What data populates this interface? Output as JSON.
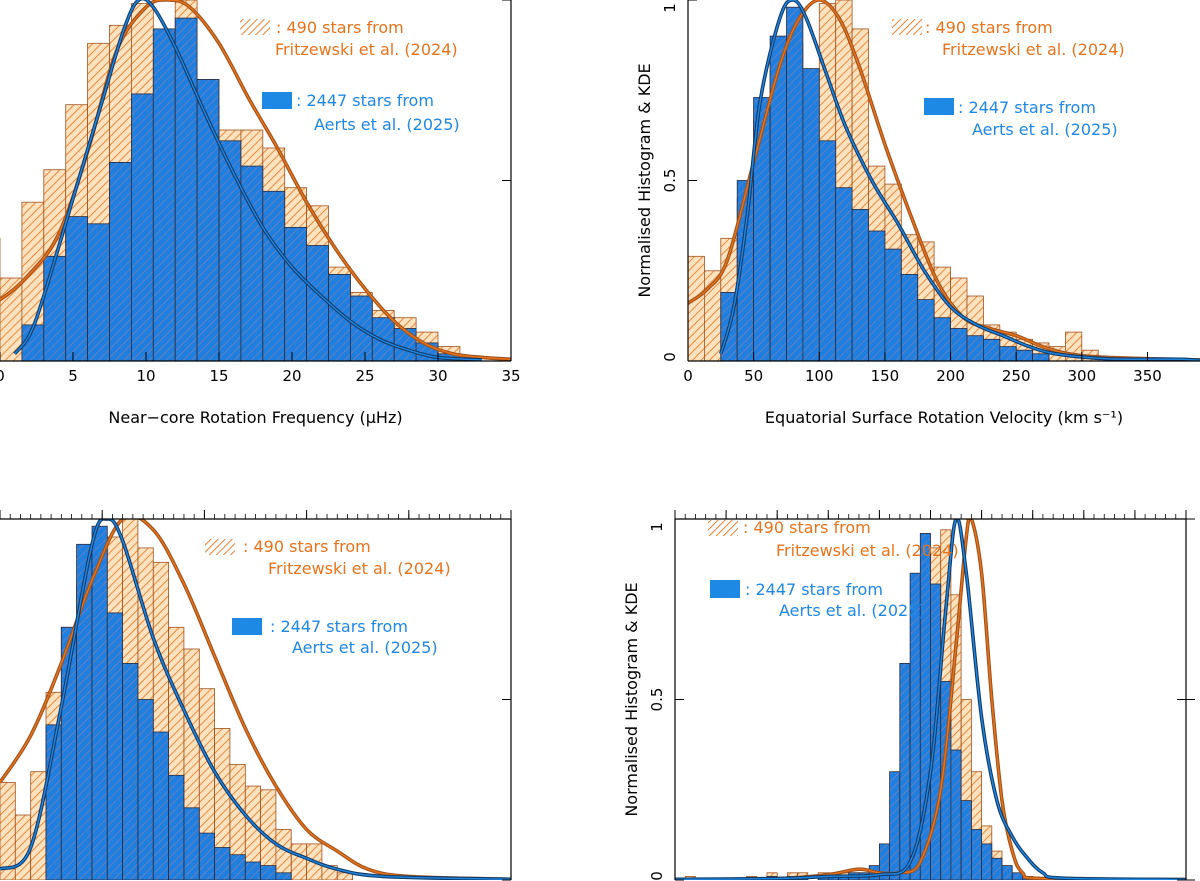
{
  "colors": {
    "orange": "#e8731a",
    "orange_fill": "#fde2c0",
    "orange_hatch": "#e8731a",
    "orange_kde": "#a0521c",
    "blue": "#1e88e5",
    "blue_fill": "#1f7fe0",
    "blue_hatch": "#6a5a78",
    "blue_kde": "#123a66",
    "ink": "#000000"
  },
  "legend": {
    "orange_count": ": 490 stars from",
    "orange_ref": "Fritzewski et al. (2024)",
    "blue_count": ": 2447 stars from",
    "blue_ref": "Aerts et al. (2025)"
  },
  "chart_data": [
    {
      "id": "panel-a",
      "type": "bar",
      "xlabel": "Near−core Rotation Frequency (μHz)",
      "ylabel": "",
      "xlim": [
        0,
        35
      ],
      "ylim": [
        0,
        1
      ],
      "xticks": [
        0,
        5,
        10,
        15,
        20,
        25,
        30,
        35
      ],
      "xticklabels": [
        "0",
        "5",
        "10",
        "15",
        "20",
        "25",
        "30",
        "35"
      ],
      "yticks": [
        0,
        0.5,
        1
      ],
      "yticklabels": [],
      "bin_width": 1.5,
      "series": [
        {
          "name": "490 stars from Fritzewski et al. (2024)",
          "bin_start": -1.5,
          "values": [
            0.34,
            0.23,
            0.44,
            0.53,
            0.71,
            0.88,
            0.93,
            0.99,
            0.85,
            1.0,
            0.71,
            0.64,
            0.64,
            0.59,
            0.48,
            0.43,
            0.26,
            0.19,
            0.14,
            0.12,
            0.08,
            0.04
          ],
          "kde": [
            [
              -1.5,
              0.15
            ],
            [
              0,
              0.17
            ],
            [
              2,
              0.24
            ],
            [
              4,
              0.35
            ],
            [
              6,
              0.58
            ],
            [
              8,
              0.86
            ],
            [
              10,
              0.98
            ],
            [
              11.5,
              1.0
            ],
            [
              13,
              0.98
            ],
            [
              15,
              0.88
            ],
            [
              17,
              0.73
            ],
            [
              19,
              0.59
            ],
            [
              21,
              0.44
            ],
            [
              23,
              0.31
            ],
            [
              25,
              0.2
            ],
            [
              27,
              0.11
            ],
            [
              29,
              0.05
            ],
            [
              31,
              0.02
            ],
            [
              33,
              0.01
            ],
            [
              35,
              0.005
            ]
          ]
        },
        {
          "name": "2447 stars from Aerts et al. (2025)",
          "bin_start": -1.5,
          "values": [
            0,
            0,
            0.1,
            0.29,
            0.4,
            0.38,
            0.55,
            0.74,
            0.92,
            0.95,
            0.78,
            0.61,
            0.54,
            0.47,
            0.37,
            0.32,
            0.24,
            0.18,
            0.12,
            0.09,
            0.05,
            0.02
          ],
          "kde": [
            [
              1,
              0.02
            ],
            [
              2,
              0.07
            ],
            [
              3,
              0.18
            ],
            [
              5,
              0.45
            ],
            [
              7,
              0.72
            ],
            [
              8.5,
              0.92
            ],
            [
              9.5,
              1.0
            ],
            [
              10.5,
              0.98
            ],
            [
              12,
              0.87
            ],
            [
              14,
              0.69
            ],
            [
              16,
              0.52
            ],
            [
              18,
              0.37
            ],
            [
              20,
              0.26
            ],
            [
              22,
              0.18
            ],
            [
              24,
              0.11
            ],
            [
              26,
              0.06
            ],
            [
              28,
              0.03
            ],
            [
              30,
              0.01
            ],
            [
              33,
              0.003
            ]
          ]
        }
      ]
    },
    {
      "id": "panel-b",
      "type": "bar",
      "xlabel": "Equatorial Surface Rotation Velocity (km s⁻¹)",
      "ylabel": "Normalised Histogram & KDE",
      "xlim": [
        0,
        390
      ],
      "ylim": [
        0,
        1
      ],
      "xticks": [
        0,
        50,
        100,
        150,
        200,
        250,
        300,
        350
      ],
      "xticklabels": [
        "0",
        "50",
        "100",
        "150",
        "200",
        "250",
        "300",
        "350"
      ],
      "yticks": [
        0,
        0.5,
        1
      ],
      "yticklabels": [
        "0",
        "0.5",
        "1"
      ],
      "bin_width": 12.5,
      "series": [
        {
          "name": "490 stars from Fritzewski et al. (2024)",
          "bin_start": 0,
          "values": [
            0.29,
            0.25,
            0.34,
            0.45,
            0.67,
            0.84,
            0.88,
            0.79,
            0.99,
            1.0,
            0.92,
            0.54,
            0.49,
            0.35,
            0.33,
            0.26,
            0.23,
            0.18,
            0.1,
            0.08,
            0.06,
            0.05,
            0.04,
            0.08,
            0.03
          ],
          "kde": [
            [
              0,
              0.16
            ],
            [
              15,
              0.2
            ],
            [
              30,
              0.28
            ],
            [
              50,
              0.55
            ],
            [
              70,
              0.82
            ],
            [
              85,
              0.95
            ],
            [
              100,
              1.0
            ],
            [
              115,
              0.95
            ],
            [
              130,
              0.82
            ],
            [
              150,
              0.6
            ],
            [
              170,
              0.4
            ],
            [
              190,
              0.22
            ],
            [
              210,
              0.12
            ],
            [
              230,
              0.09
            ],
            [
              250,
              0.07
            ],
            [
              270,
              0.04
            ],
            [
              290,
              0.02
            ],
            [
              320,
              0.01
            ],
            [
              390,
              0.003
            ]
          ]
        },
        {
          "name": "2447 stars from Aerts et al. (2025)",
          "bin_start": 25,
          "values": [
            0.19,
            0.5,
            0.73,
            0.9,
            0.98,
            0.81,
            0.61,
            0.48,
            0.42,
            0.36,
            0.31,
            0.24,
            0.17,
            0.12,
            0.09,
            0.07,
            0.06,
            0.04,
            0.03,
            0.02
          ],
          "kde": [
            [
              25,
              0.02
            ],
            [
              35,
              0.15
            ],
            [
              45,
              0.4
            ],
            [
              55,
              0.72
            ],
            [
              70,
              0.95
            ],
            [
              80,
              1.0
            ],
            [
              90,
              0.95
            ],
            [
              105,
              0.8
            ],
            [
              120,
              0.65
            ],
            [
              140,
              0.5
            ],
            [
              160,
              0.38
            ],
            [
              180,
              0.25
            ],
            [
              200,
              0.15
            ],
            [
              220,
              0.1
            ],
            [
              240,
              0.07
            ],
            [
              260,
              0.04
            ],
            [
              280,
              0.02
            ],
            [
              320,
              0.006
            ],
            [
              370,
              0.005
            ],
            [
              390,
              0.002
            ]
          ]
        }
      ]
    },
    {
      "id": "panel-c",
      "type": "bar",
      "xlabel": "",
      "ylabel": "",
      "xlim": [
        0,
        10
      ],
      "ylim": [
        0,
        1
      ],
      "xticks": [
        0,
        2,
        4,
        6,
        8,
        10
      ],
      "xticklabels": [],
      "yticks": [
        0,
        0.5,
        1
      ],
      "yticklabels": [],
      "bin_width": 0.3,
      "series": [
        {
          "name": "490 stars from Fritzewski et al. (2024)",
          "bin_start": 0,
          "values": [
            0.27,
            0.18,
            0.3,
            0.52,
            0.7,
            0.82,
            0.87,
            0.95,
            1.0,
            0.92,
            0.88,
            0.7,
            0.64,
            0.53,
            0.42,
            0.32,
            0.26,
            0.25,
            0.14,
            0.1,
            0.1,
            0.04,
            0.02
          ],
          "kde": [
            [
              0,
              0.27
            ],
            [
              0.6,
              0.4
            ],
            [
              1.2,
              0.6
            ],
            [
              1.8,
              0.83
            ],
            [
              2.4,
              1.0
            ],
            [
              3.0,
              0.97
            ],
            [
              3.6,
              0.82
            ],
            [
              4.2,
              0.62
            ],
            [
              4.8,
              0.42
            ],
            [
              5.4,
              0.26
            ],
            [
              6.0,
              0.14
            ],
            [
              6.6,
              0.08
            ],
            [
              7.2,
              0.03
            ],
            [
              8,
              0.01
            ],
            [
              10,
              0.002
            ]
          ]
        },
        {
          "name": "2447 stars from Aerts et al. (2025)",
          "bin_start": 0.9,
          "values": [
            0.43,
            0.7,
            0.93,
            0.98,
            0.74,
            0.6,
            0.5,
            0.41,
            0.29,
            0.2,
            0.13,
            0.09,
            0.07,
            0.05,
            0.04,
            0.02
          ],
          "kde": [
            [
              0,
              0.03
            ],
            [
              0.6,
              0.09
            ],
            [
              1.2,
              0.48
            ],
            [
              1.8,
              0.93
            ],
            [
              2.1,
              1.0
            ],
            [
              2.4,
              0.94
            ],
            [
              3.0,
              0.67
            ],
            [
              3.6,
              0.47
            ],
            [
              4.2,
              0.3
            ],
            [
              4.8,
              0.18
            ],
            [
              5.4,
              0.1
            ],
            [
              6.0,
              0.06
            ],
            [
              6.6,
              0.03
            ],
            [
              7.5,
              0.01
            ],
            [
              10,
              0.002
            ]
          ]
        }
      ]
    },
    {
      "id": "panel-d",
      "type": "bar",
      "xlabel": "",
      "ylabel": "Normalised Histogram & KDE",
      "xlim": [
        0,
        100
      ],
      "ylim": [
        0,
        1
      ],
      "xticks": [
        0,
        10,
        20,
        30,
        40,
        50,
        60,
        70,
        80,
        90,
        100
      ],
      "xticklabels": [],
      "yticks": [
        0,
        0.5,
        1
      ],
      "yticklabels": [
        "0",
        "0.5",
        "1"
      ],
      "bin_width": 2,
      "series": [
        {
          "name": "490 stars from Fritzewski et al. (2024)",
          "bin_start": 0,
          "values": [
            0,
            0.01,
            0,
            0,
            0,
            0,
            0,
            0.01,
            0,
            0.02,
            0,
            0.02,
            0.02,
            0,
            0.02,
            0.02,
            0.02,
            0.02,
            0.02,
            0.03,
            0.04,
            0.07,
            0.18,
            0.4,
            0.73,
            0.92,
            0.97,
            0.79,
            0.5,
            0.3,
            0.15,
            0.08,
            0.03,
            0.01,
            0,
            0
          ],
          "kde": [
            [
              0,
              0.002
            ],
            [
              20,
              0.004
            ],
            [
              30,
              0.015
            ],
            [
              36,
              0.03
            ],
            [
              40,
              0.02
            ],
            [
              44,
              0.02
            ],
            [
              48,
              0.05
            ],
            [
              52,
              0.25
            ],
            [
              55,
              0.65
            ],
            [
              57,
              0.95
            ],
            [
              58,
              1.0
            ],
            [
              60,
              0.85
            ],
            [
              62,
              0.5
            ],
            [
              64,
              0.22
            ],
            [
              66,
              0.08
            ],
            [
              68,
              0.02
            ],
            [
              72,
              0.004
            ],
            [
              100,
              0.001
            ]
          ]
        },
        {
          "name": "2447 stars from Aerts et al. (2025)",
          "bin_start": 0,
          "values": [
            0,
            0,
            0,
            0,
            0,
            0,
            0,
            0,
            0,
            0.01,
            0,
            0.01,
            0.01,
            0,
            0.01,
            0.01,
            0.01,
            0.02,
            0.02,
            0.04,
            0.1,
            0.3,
            0.6,
            0.85,
            0.96,
            0.82,
            0.55,
            0.36,
            0.22,
            0.14,
            0.1,
            0.06,
            0.04,
            0.02,
            0.01,
            0
          ],
          "kde": [
            [
              0,
              0.002
            ],
            [
              20,
              0.004
            ],
            [
              30,
              0.01
            ],
            [
              40,
              0.015
            ],
            [
              46,
              0.05
            ],
            [
              50,
              0.3
            ],
            [
              53,
              0.75
            ],
            [
              55,
              1.0
            ],
            [
              57,
              0.85
            ],
            [
              60,
              0.45
            ],
            [
              63,
              0.22
            ],
            [
              66,
              0.12
            ],
            [
              69,
              0.06
            ],
            [
              72,
              0.02
            ],
            [
              76,
              0.005
            ],
            [
              100,
              0.001
            ]
          ]
        }
      ]
    }
  ]
}
